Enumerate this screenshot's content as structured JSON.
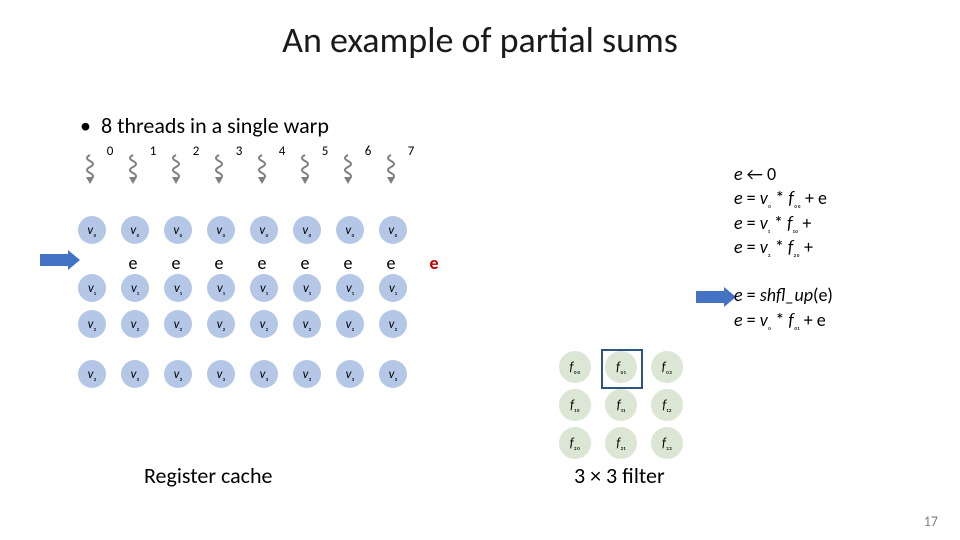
{
  "title": "An example of partial sums",
  "bullet": "8 threads in a single warp",
  "thread_ids": [
    "0",
    "1",
    "2",
    "3",
    "4",
    "5",
    "6",
    "7"
  ],
  "colors": {
    "dot": "#b4c7e7",
    "fill": "#dbe6d5",
    "squig": "#7f7f7f",
    "arrow": "#4472c4",
    "e_red": "#c00000",
    "e_black": "#000000",
    "fbox_border": "#30557e"
  },
  "v_rows": [
    "v₀",
    "v₁",
    "v₂",
    "v₃"
  ],
  "v_row_gap_after": [
    0,
    0,
    14,
    14
  ],
  "e_row": {
    "cells": [
      "e",
      "e",
      "e",
      "e",
      "e",
      "e",
      "e",
      "e"
    ],
    "red_indices": [
      7
    ]
  },
  "register_cache_label": "Register cache",
  "eqs": [
    "e ← 0",
    "e = v₀ * f₀₀ + e",
    "e = v₁ * f₁₀ +",
    "e = v₂ * f₂₀ +",
    "",
    "e = shfl_up(e)",
    "e = v₀ * f₀₁ + e"
  ],
  "filter": {
    "label": "3 × 3 filter",
    "cells": [
      [
        "f₀₀",
        "f₀₁",
        "f₀₂"
      ],
      [
        "f₁₀",
        "f₁₁",
        "f₁₂"
      ],
      [
        "f₂₀",
        "f₂₁",
        "f₂₂"
      ]
    ],
    "highlight": {
      "row": 0,
      "col": 1
    }
  },
  "page_number": "17"
}
